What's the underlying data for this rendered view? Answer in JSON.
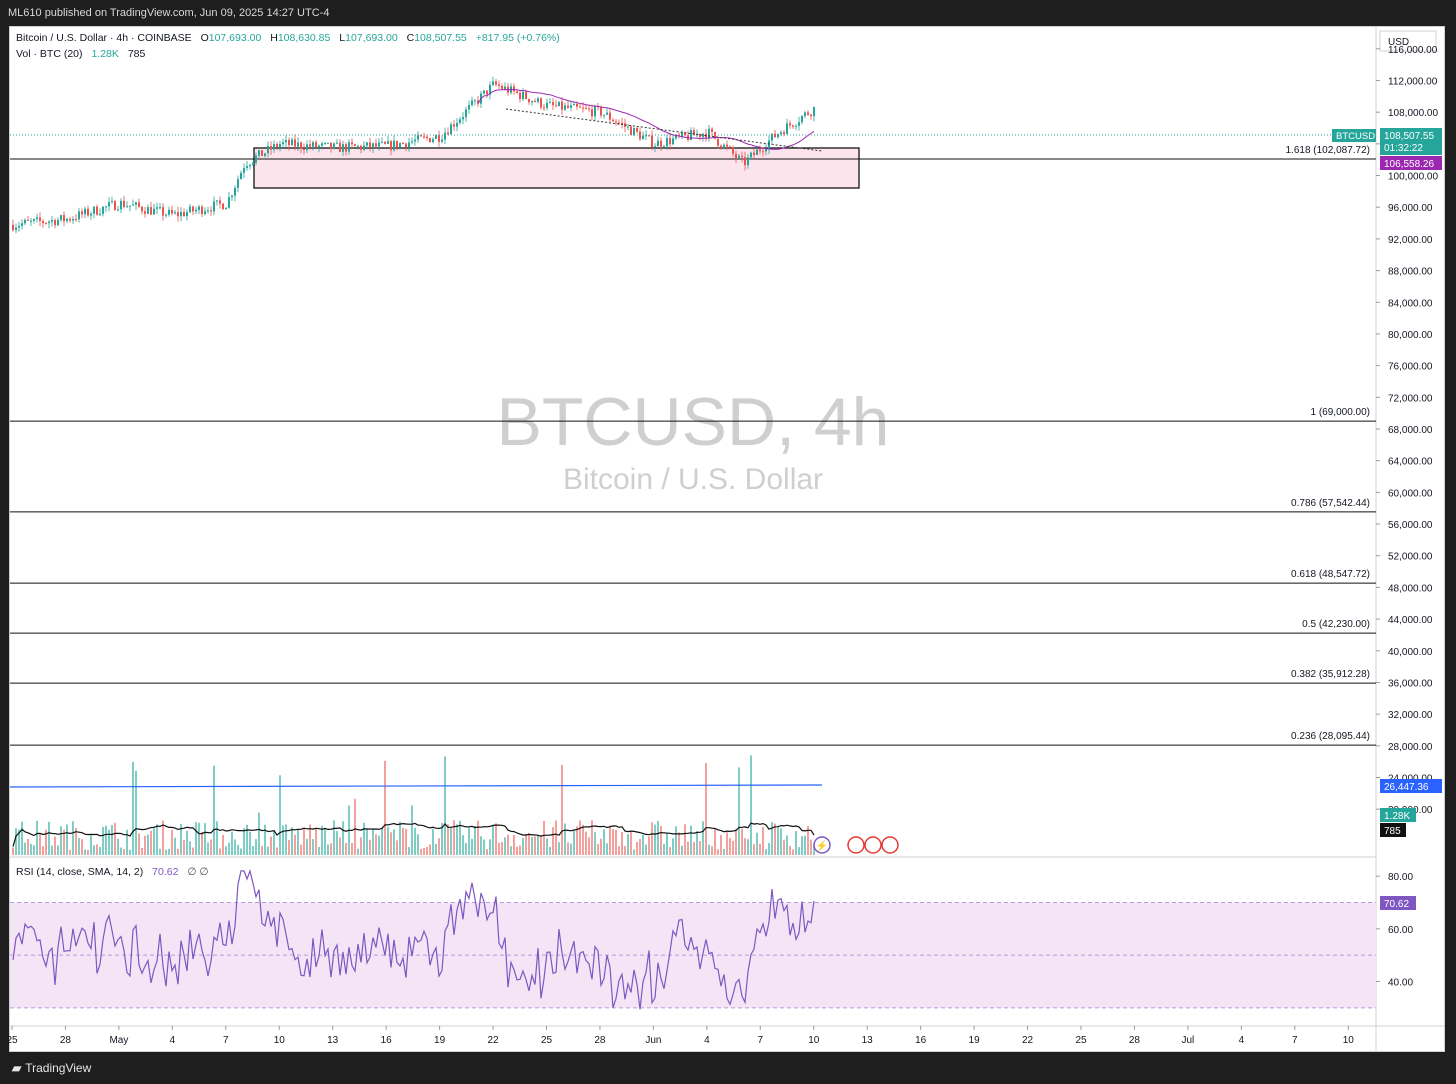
{
  "header": {
    "published": "ML610 published on TradingView.com, Jun 09, 2025 14:27 UTC-4"
  },
  "legend": {
    "symbol": "Bitcoin / U.S. Dollar · 4h · COINBASE",
    "o_label": "O",
    "o_value": "107,693.00",
    "h_label": "H",
    "h_value": "108,630.85",
    "l_label": "L",
    "l_value": "107,693.00",
    "c_label": "C",
    "c_value": "108,507.55",
    "change": "+817.95 (+0.76%)",
    "vol_label": "Vol · BTC (20)",
    "vol_value": "1.28K",
    "vol_ma": "785",
    "rsi_label": "RSI (14, close, SMA, 14, 2)",
    "rsi_value": "70.62",
    "rsi_extra": "∅ ∅"
  },
  "watermark": {
    "ticker": "BTCUSD, 4h",
    "name": "Bitcoin / U.S. Dollar"
  },
  "price_axis": {
    "currency": "USD",
    "ticks": [
      "116,000.00",
      "112,000.00",
      "108,000.00",
      "104,000.00",
      "100,000.00",
      "96,000.00",
      "92,000.00",
      "88,000.00",
      "84,000.00",
      "80,000.00",
      "76,000.00",
      "72,000.00",
      "68,000.00",
      "64,000.00",
      "60,000.00",
      "56,000.00",
      "52,000.00",
      "48,000.00",
      "44,000.00",
      "40,000.00",
      "36,000.00",
      "32,000.00",
      "28,000.00",
      "24,000.00",
      "20,000.00"
    ],
    "last_price_tag": {
      "symbol": "BTCUSD",
      "price": "108,507.55",
      "countdown": "01:32:22",
      "color": "#26a69a"
    },
    "ma_tag": {
      "value": "106,558.26",
      "color": "#9c27b0"
    },
    "vol_tags": {
      "blue": "26,447.36",
      "green": "1.28K",
      "black": "785"
    }
  },
  "rsi_axis": {
    "ticks": [
      "80.00",
      "60.00",
      "40.00"
    ],
    "value_tag": "70.62"
  },
  "time_axis": {
    "labels": [
      "25",
      "28",
      "May",
      "4",
      "7",
      "10",
      "13",
      "16",
      "19",
      "22",
      "25",
      "28",
      "Jun",
      "4",
      "7",
      "10",
      "13",
      "16",
      "19",
      "22",
      "25",
      "28",
      "Jul",
      "4",
      "7",
      "10"
    ]
  },
  "fib_levels": [
    {
      "label": "1.618 (102,087.72)",
      "price": 102087.72
    },
    {
      "label": "1 (69,000.00)",
      "price": 69000.0
    },
    {
      "label": "0.786 (57,542.44)",
      "price": 57542.44
    },
    {
      "label": "0.618 (48,547.72)",
      "price": 48547.72
    },
    {
      "label": "0.5 (42,230.00)",
      "price": 42230.0
    },
    {
      "label": "0.382 (35,912.28)",
      "price": 35912.28
    },
    {
      "label": "0.236 (28,095.44)",
      "price": 28095.44
    }
  ],
  "footer": {
    "brand": "TradingView"
  },
  "colors": {
    "up": "#26a69a",
    "down": "#ef5350",
    "ma": "#9c27b0",
    "rsi": "#7e57c2",
    "rsi_band": "#f3e5f5",
    "range_box": "#fce4ec",
    "vol_ma_blue": "#2962ff"
  },
  "chart_data": {
    "type": "candlestick",
    "timeframe": "4h",
    "y_axis": {
      "range": [
        17500,
        118500
      ],
      "unit": "USD"
    },
    "x_axis": {
      "start": "Apr 25 2025",
      "end": "Jul 10 2025"
    },
    "approx_close_path": [
      {
        "date": "2025-04-25",
        "close": 93800
      },
      {
        "date": "2025-04-28",
        "close": 94500
      },
      {
        "date": "2025-05-01",
        "close": 96500
      },
      {
        "date": "2025-05-04",
        "close": 95000
      },
      {
        "date": "2025-05-07",
        "close": 96500
      },
      {
        "date": "2025-05-08",
        "close": 101500
      },
      {
        "date": "2025-05-10",
        "close": 104000
      },
      {
        "date": "2025-05-13",
        "close": 103500
      },
      {
        "date": "2025-05-16",
        "close": 103700
      },
      {
        "date": "2025-05-19",
        "close": 105000
      },
      {
        "date": "2025-05-22",
        "close": 111500
      },
      {
        "date": "2025-05-25",
        "close": 108800
      },
      {
        "date": "2025-05-28",
        "close": 108000
      },
      {
        "date": "2025-05-31",
        "close": 104000
      },
      {
        "date": "2025-06-03",
        "close": 105500
      },
      {
        "date": "2025-06-05",
        "close": 101500
      },
      {
        "date": "2025-06-07",
        "close": 105500
      },
      {
        "date": "2025-06-09",
        "close": 108507.55
      }
    ],
    "rsi": {
      "range": [
        25,
        85
      ],
      "band": [
        30,
        70
      ],
      "mid": 50,
      "last": 70.62
    }
  }
}
